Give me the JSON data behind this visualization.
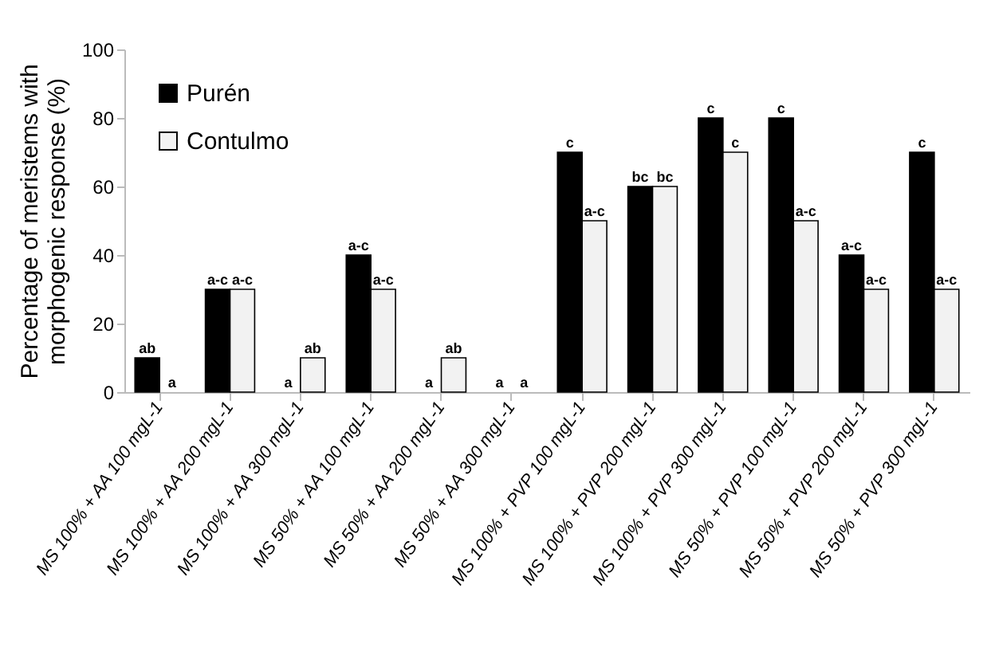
{
  "chart_data": {
    "type": "bar",
    "ylabel": "Percentage of meristems with\nmorphogenic response (%)",
    "categories": [
      "MS 100% + AA 100 mgL-1",
      "MS 100% + AA 200 mgL-1",
      "MS 100% + AA 300 mgL-1",
      "MS 50% + AA 100 mgL-1",
      "MS 50% + AA 200 mgL-1",
      "MS 50% + AA 300 mgL-1",
      "MS 100% + PVP 100 mgL-1",
      "MS 100% + PVP 200 mgL-1",
      "MS 100% + PVP 300 mgL-1",
      "MS 50% + PVP 100 mgL-1",
      "MS 50% + PVP 200 mgL-1",
      "MS 50% + PVP 300 mgL-1"
    ],
    "series": [
      {
        "name": "Purén",
        "color": "#000000",
        "values": [
          10,
          30,
          0,
          40,
          0,
          0,
          70,
          60,
          80,
          80,
          40,
          70
        ],
        "value_labels": [
          "ab",
          "a-c",
          "a",
          "a-c",
          "a",
          "a",
          "c",
          "bc",
          "c",
          "c",
          "a-c",
          "c"
        ]
      },
      {
        "name": "Contulmo",
        "color": "#f2f2f2",
        "values": [
          0,
          30,
          10,
          30,
          10,
          0,
          50,
          60,
          70,
          50,
          30,
          30
        ],
        "value_labels": [
          "a",
          "a-c",
          "ab",
          "a-c",
          "ab",
          "a",
          "a-c",
          "bc",
          "c",
          "a-c",
          "a-c",
          "a-c"
        ]
      }
    ],
    "ylim": [
      0,
      100
    ],
    "yticks": [
      0,
      20,
      40,
      60,
      80,
      100
    ],
    "legend": "top left"
  }
}
